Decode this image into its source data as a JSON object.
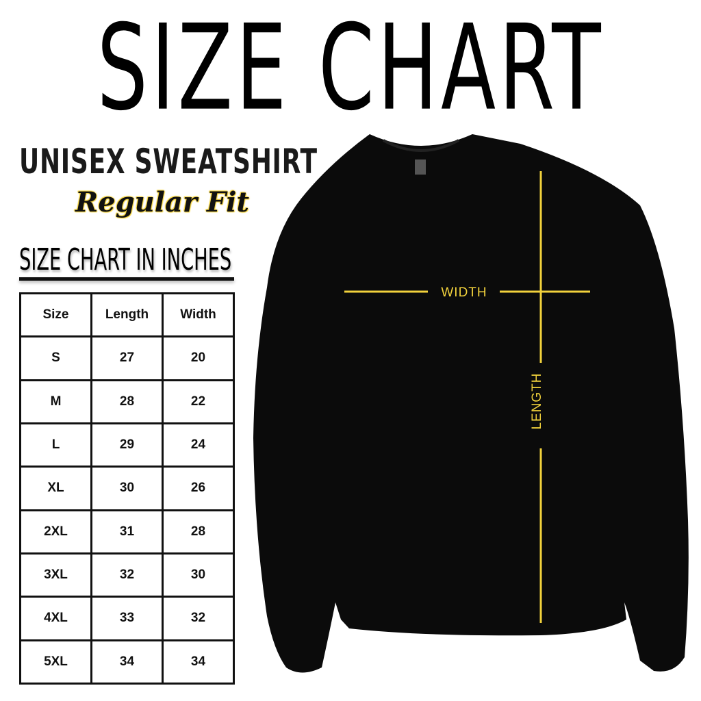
{
  "title": "SIZE CHART",
  "product": "UNISEX SWEATSHIRT",
  "fit": "Regular Fit",
  "subtitle": "SIZE CHART IN INCHES",
  "accent_color": "#f2d23c",
  "table": {
    "headers": [
      "Size",
      "Length",
      "Width"
    ],
    "rows": [
      [
        "S",
        "27",
        "20"
      ],
      [
        "M",
        "28",
        "22"
      ],
      [
        "L",
        "29",
        "24"
      ],
      [
        "XL",
        "30",
        "26"
      ],
      [
        "2XL",
        "31",
        "28"
      ],
      [
        "3XL",
        "32",
        "30"
      ],
      [
        "4XL",
        "33",
        "32"
      ],
      [
        "5XL",
        "34",
        "34"
      ]
    ]
  },
  "diagram": {
    "width_label": "WIDTH",
    "length_label": "LENGTH"
  }
}
